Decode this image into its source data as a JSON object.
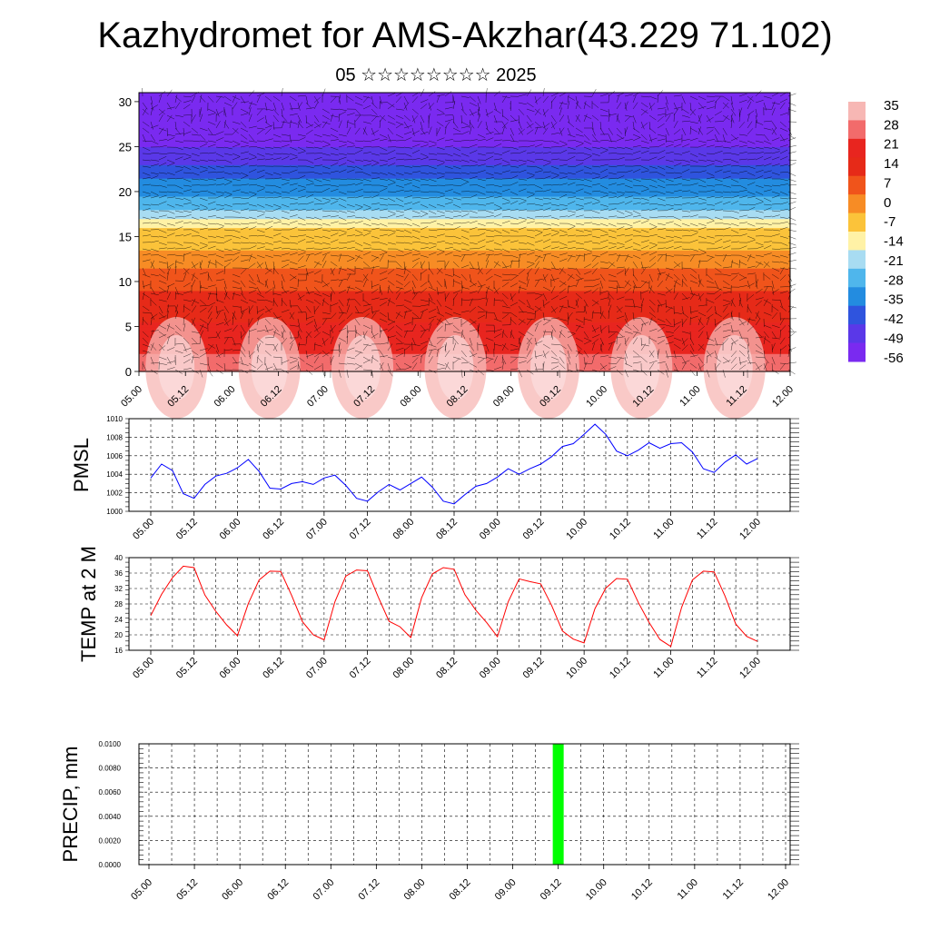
{
  "title": "Kazhydromet for AMS-Akzhar(43.229 71.102)",
  "subtitle": "05 ☆☆☆☆☆☆☆☆ 2025",
  "time_ticks": [
    "05.00",
    "05.12",
    "06.00",
    "06.12",
    "07.00",
    "07.12",
    "08.00",
    "08.12",
    "09.00",
    "09.12",
    "10.00",
    "10.12",
    "11.00",
    "11.12",
    "12.00"
  ],
  "colors": {
    "pmsl_line": "#0000ff",
    "temp_line": "#ff0000",
    "precip_bar": "#00ff00",
    "axes": "#000000",
    "vectors": "#000000"
  },
  "chart_data": [
    {
      "type": "heatmap",
      "name": "cross-section",
      "xlabel": "",
      "ylabel": "",
      "ylim": [
        0,
        31
      ],
      "yticks": [
        0,
        5,
        10,
        15,
        20,
        25,
        30
      ],
      "colorbar": {
        "labels": [
          "35",
          "28",
          "21",
          "14",
          "7",
          "0",
          "-7",
          "-14",
          "-21",
          "-28",
          "-35",
          "-42",
          "-49",
          "-56"
        ],
        "colors": [
          "#f7b7b4",
          "#f26b6b",
          "#e8251f",
          "#e62a18",
          "#f0541b",
          "#f78c25",
          "#fbc33a",
          "#fff2a6",
          "#a8dcf2",
          "#4fb6ec",
          "#238ce0",
          "#2f54de",
          "#5a38e8",
          "#7a2af0"
        ]
      },
      "profile": {
        "heights": [
          0,
          3,
          6,
          9,
          11,
          13,
          15,
          16.5,
          18,
          20,
          22,
          24,
          26,
          28,
          31
        ],
        "temps": [
          35,
          25,
          20,
          14,
          9,
          2,
          -4,
          -10,
          -20,
          -30,
          -38,
          -45,
          -52,
          -56,
          -57
        ]
      },
      "wind_vectors": "dense black arrow field"
    },
    {
      "type": "line",
      "name": "pmsl",
      "ylabel": "PMSL",
      "ylim": [
        1000,
        1010
      ],
      "yticks": [
        "1000",
        "1002",
        "1004",
        "1006",
        "1008",
        "1010"
      ],
      "x_step_hours": 3,
      "x_start": "05.00",
      "values": [
        1003.6,
        1005.1,
        1004.4,
        1001.9,
        1001.4,
        1002.9,
        1003.8,
        1004.1,
        1004.7,
        1005.6,
        1004.3,
        1002.5,
        1002.4,
        1003.0,
        1003.2,
        1002.9,
        1003.6,
        1003.9,
        1002.8,
        1001.4,
        1001.1,
        1002.1,
        1002.9,
        1002.3,
        1003.0,
        1003.7,
        1002.6,
        1001.1,
        1000.8,
        1001.8,
        1002.7,
        1003.0,
        1003.7,
        1004.6,
        1004.0,
        1004.6,
        1005.1,
        1005.9,
        1007.0,
        1007.3,
        1008.3,
        1009.4,
        1008.3,
        1006.5,
        1006.0,
        1006.6,
        1007.4,
        1006.8,
        1007.3,
        1007.4,
        1006.4,
        1004.6,
        1004.2,
        1005.3,
        1006.1,
        1005.1,
        1005.7
      ]
    },
    {
      "type": "line",
      "name": "temp",
      "ylabel": "TEMP at 2 M",
      "ylim": [
        16,
        40
      ],
      "yticks": [
        "16",
        "20",
        "24",
        "28",
        "32",
        "36",
        "40"
      ],
      "x_step_hours": 3,
      "x_start": "05.00",
      "values": [
        25.0,
        30.5,
        34.8,
        37.8,
        37.4,
        30.3,
        26.1,
        22.6,
        19.8,
        28.1,
        34.2,
        36.5,
        36.4,
        30.2,
        23.4,
        20.0,
        18.7,
        28.6,
        35.2,
        36.8,
        36.6,
        29.8,
        23.5,
        22.1,
        19.3,
        29.6,
        35.8,
        37.4,
        37.0,
        30.4,
        26.4,
        23.2,
        19.5,
        28.6,
        34.5,
        33.8,
        33.2,
        27.6,
        21.0,
        18.9,
        17.9,
        26.8,
        32.1,
        34.6,
        34.4,
        28.4,
        23.2,
        18.8,
        17.0,
        27.1,
        34.2,
        36.5,
        36.3,
        30.1,
        22.8,
        19.6,
        18.3
      ]
    },
    {
      "type": "bar",
      "name": "precip",
      "ylabel": "PRECIP, mm",
      "ylim": [
        0,
        0.01
      ],
      "yticks": [
        "0.0000",
        "0.0020",
        "0.0040",
        "0.0060",
        "0.0080",
        "0.0100"
      ],
      "bars": [
        {
          "x_hours": 108,
          "value": 0.01
        }
      ]
    }
  ]
}
